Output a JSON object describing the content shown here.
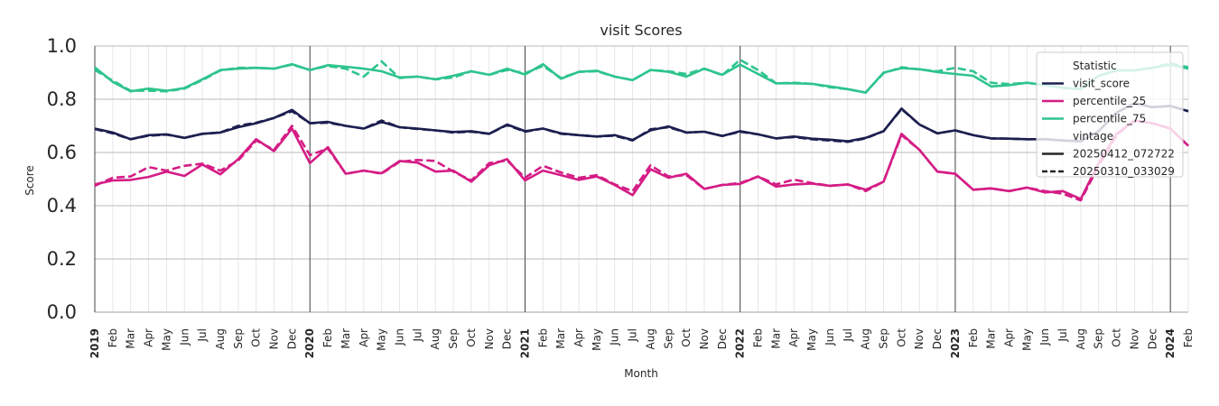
{
  "chart_data": {
    "type": "line",
    "title": "visit Scores",
    "xlabel": "Month",
    "ylabel": "Score",
    "ylim": [
      0.0,
      1.0
    ],
    "yticks": [
      "0.0",
      "0.2",
      "0.4",
      "0.6",
      "0.8",
      "1.0"
    ],
    "x": [
      "2019-01",
      "2019-02",
      "2019-03",
      "2019-04",
      "2019-05",
      "2019-06",
      "2019-07",
      "2019-08",
      "2019-09",
      "2019-10",
      "2019-11",
      "2019-12",
      "2020-01",
      "2020-02",
      "2020-03",
      "2020-04",
      "2020-05",
      "2020-06",
      "2020-07",
      "2020-08",
      "2020-09",
      "2020-10",
      "2020-11",
      "2020-12",
      "2021-01",
      "2021-02",
      "2021-03",
      "2021-04",
      "2021-05",
      "2021-06",
      "2021-07",
      "2021-08",
      "2021-09",
      "2021-10",
      "2021-11",
      "2021-12",
      "2022-01",
      "2022-02",
      "2022-03",
      "2022-04",
      "2022-05",
      "2022-06",
      "2022-07",
      "2022-08",
      "2022-09",
      "2022-10",
      "2022-11",
      "2022-12",
      "2023-01",
      "2023-02",
      "2023-03",
      "2023-04",
      "2023-05",
      "2023-06",
      "2023-07",
      "2023-08",
      "2023-09",
      "2023-10",
      "2023-11",
      "2023-12",
      "2024-01",
      "2024-02"
    ],
    "xtick_labels": [
      "2019",
      "Feb",
      "Mar",
      "Apr",
      "May",
      "Jun",
      "Jul",
      "Aug",
      "Sep",
      "Oct",
      "Nov",
      "Dec",
      "2020",
      "Feb",
      "Mar",
      "Apr",
      "May",
      "Jun",
      "Jul",
      "Aug",
      "Sep",
      "Oct",
      "Nov",
      "Dec",
      "2021",
      "Feb",
      "Mar",
      "Apr",
      "May",
      "Jun",
      "Jul",
      "Aug",
      "Sep",
      "Oct",
      "Nov",
      "Dec",
      "2022",
      "Feb",
      "Mar",
      "Apr",
      "May",
      "Jun",
      "Jul",
      "Aug",
      "Sep",
      "Oct",
      "Nov",
      "Dec",
      "2023",
      "Feb",
      "Mar",
      "Apr",
      "May",
      "Jun",
      "Jul",
      "Aug",
      "Sep",
      "Oct",
      "Nov",
      "Dec",
      "2024",
      "Feb"
    ],
    "grid": true,
    "legend_placement": "top-right",
    "legend": {
      "statistic_title": "Statistic",
      "vintage_title": "vintage",
      "vintages": [
        {
          "name": "20250412_072722",
          "dash": "solid"
        },
        {
          "name": "20250310_033029",
          "dash": "dashed"
        }
      ]
    },
    "series": [
      {
        "name": "visit_score",
        "statistic": "visit_score",
        "vintage": "20250412_072722",
        "color": "#1c1f4f",
        "values": [
          0.69,
          0.675,
          0.65,
          0.665,
          0.668,
          0.655,
          0.67,
          0.675,
          0.695,
          0.71,
          0.73,
          0.76,
          0.71,
          0.715,
          0.7,
          0.69,
          0.715,
          0.695,
          0.69,
          0.683,
          0.677,
          0.68,
          0.67,
          0.705,
          0.68,
          0.69,
          0.672,
          0.665,
          0.66,
          0.665,
          0.647,
          0.683,
          0.698,
          0.675,
          0.678,
          0.662,
          0.68,
          0.668,
          0.653,
          0.66,
          0.652,
          0.648,
          0.642,
          0.655,
          0.68,
          0.765,
          0.705,
          0.672,
          0.683,
          0.665,
          0.653,
          0.652,
          0.65,
          0.65,
          0.645,
          0.642,
          0.68,
          0.75,
          0.785,
          0.77,
          0.775,
          0.755
        ]
      },
      {
        "name": "visit_score",
        "statistic": "visit_score",
        "vintage": "20250310_033029",
        "color": "#1c1f4f",
        "values": [
          0.688,
          0.672,
          0.65,
          0.663,
          0.667,
          0.655,
          0.67,
          0.675,
          0.7,
          0.712,
          0.73,
          0.755,
          0.71,
          0.712,
          0.7,
          0.69,
          0.72,
          0.695,
          0.688,
          0.683,
          0.675,
          0.678,
          0.67,
          0.703,
          0.678,
          0.69,
          0.67,
          0.665,
          0.66,
          0.663,
          0.645,
          0.687,
          0.695,
          0.675,
          0.678,
          0.662,
          0.678,
          0.668,
          0.653,
          0.658,
          0.65,
          0.645,
          0.64,
          0.653,
          0.68,
          0.763,
          0.705,
          0.672,
          0.683,
          0.665,
          0.653,
          0.652,
          0.65,
          0.65,
          0.645,
          0.642,
          0.68,
          0.75,
          0.785,
          0.77,
          0.775,
          0.755
        ]
      },
      {
        "name": "percentile_25",
        "statistic": "percentile_25",
        "vintage": "20250412_072722",
        "color": "#d41c85",
        "values": [
          0.48,
          0.495,
          0.497,
          0.508,
          0.528,
          0.512,
          0.555,
          0.518,
          0.575,
          0.65,
          0.605,
          0.69,
          0.56,
          0.62,
          0.52,
          0.532,
          0.522,
          0.568,
          0.562,
          0.528,
          0.532,
          0.49,
          0.552,
          0.575,
          0.495,
          0.532,
          0.515,
          0.497,
          0.51,
          0.478,
          0.44,
          0.537,
          0.505,
          0.52,
          0.463,
          0.478,
          0.482,
          0.51,
          0.472,
          0.48,
          0.483,
          0.475,
          0.48,
          0.46,
          0.49,
          0.67,
          0.61,
          0.528,
          0.52,
          0.46,
          0.465,
          0.455,
          0.468,
          0.45,
          0.455,
          0.425,
          0.56,
          0.67,
          0.72,
          0.71,
          0.69,
          0.625
        ]
      },
      {
        "name": "percentile_25",
        "statistic": "percentile_25",
        "vintage": "20250310_033029",
        "color": "#d41c85",
        "values": [
          0.475,
          0.505,
          0.51,
          0.545,
          0.532,
          0.55,
          0.558,
          0.532,
          0.57,
          0.645,
          0.61,
          0.7,
          0.59,
          0.615,
          0.52,
          0.532,
          0.52,
          0.565,
          0.572,
          0.568,
          0.528,
          0.495,
          0.56,
          0.57,
          0.505,
          0.55,
          0.525,
          0.505,
          0.515,
          0.48,
          0.455,
          0.552,
          0.51,
          0.515,
          0.463,
          0.478,
          0.485,
          0.51,
          0.48,
          0.498,
          0.485,
          0.475,
          0.48,
          0.455,
          0.49,
          0.665,
          0.61,
          0.528,
          0.52,
          0.46,
          0.465,
          0.455,
          0.468,
          0.455,
          0.445,
          0.42,
          0.55,
          0.665,
          0.72,
          0.71,
          0.69,
          0.625
        ]
      },
      {
        "name": "percentile_75",
        "statistic": "percentile_75",
        "vintage": "20250412_072722",
        "color": "#2ec48d",
        "values": [
          0.92,
          0.865,
          0.83,
          0.84,
          0.832,
          0.842,
          0.875,
          0.91,
          0.915,
          0.918,
          0.915,
          0.932,
          0.91,
          0.928,
          0.922,
          0.915,
          0.905,
          0.882,
          0.885,
          0.875,
          0.888,
          0.905,
          0.892,
          0.915,
          0.893,
          0.932,
          0.877,
          0.903,
          0.907,
          0.885,
          0.872,
          0.91,
          0.903,
          0.885,
          0.915,
          0.892,
          0.93,
          0.895,
          0.86,
          0.86,
          0.858,
          0.848,
          0.838,
          0.825,
          0.9,
          0.917,
          0.913,
          0.902,
          0.895,
          0.888,
          0.848,
          0.853,
          0.862,
          0.853,
          0.843,
          0.838,
          0.888,
          0.908,
          0.908,
          0.918,
          0.93,
          0.915
        ]
      },
      {
        "name": "percentile_75",
        "statistic": "percentile_75",
        "vintage": "20250310_033029",
        "color": "#2ec48d",
        "values": [
          0.91,
          0.87,
          0.832,
          0.832,
          0.83,
          0.84,
          0.872,
          0.908,
          0.918,
          0.918,
          0.915,
          0.93,
          0.91,
          0.925,
          0.915,
          0.885,
          0.942,
          0.88,
          0.885,
          0.875,
          0.882,
          0.905,
          0.892,
          0.91,
          0.898,
          0.925,
          0.88,
          0.903,
          0.905,
          0.885,
          0.872,
          0.91,
          0.905,
          0.895,
          0.915,
          0.89,
          0.948,
          0.91,
          0.86,
          0.862,
          0.858,
          0.845,
          0.838,
          0.825,
          0.898,
          0.92,
          0.912,
          0.905,
          0.918,
          0.905,
          0.862,
          0.857,
          0.862,
          0.853,
          0.843,
          0.838,
          0.888,
          0.908,
          0.908,
          0.918,
          0.935,
          0.92
        ]
      }
    ]
  }
}
